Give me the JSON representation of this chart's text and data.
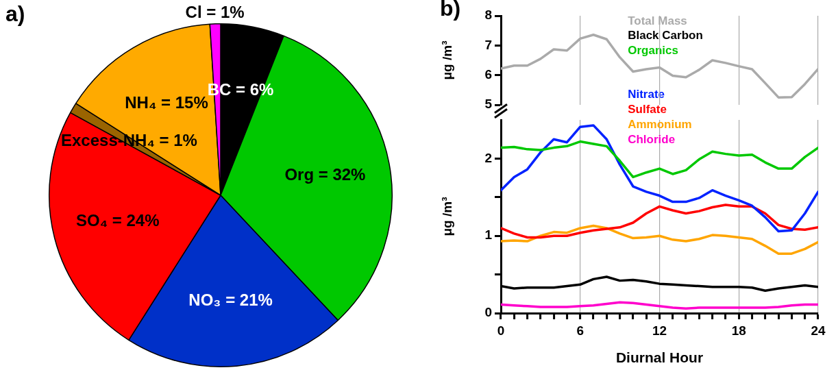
{
  "chart_data": [
    {
      "type": "pie",
      "title": "a)",
      "categories": [
        "BC = 6%",
        "Org = 32%",
        "NO₃ = 21%",
        "SO₄ = 24%",
        "Excess-NH₄ = 1%",
        "NH₄ = 15%",
        "Cl = 1%"
      ],
      "values": [
        6,
        32,
        21,
        24,
        1,
        15,
        1
      ],
      "colors": [
        "#000000",
        "#00c800",
        "#0030c8",
        "#ff0000",
        "#9a6400",
        "#ffaa00",
        "#ff00ff"
      ]
    },
    {
      "type": "line",
      "title": "b)",
      "ylabel": "μg /m³",
      "x": [
        0,
        1,
        2,
        3,
        4,
        5,
        6,
        7,
        8,
        9,
        10,
        11,
        12,
        13,
        14,
        15,
        16,
        17,
        18,
        19,
        20,
        21,
        22,
        23,
        24
      ],
      "xlim": [
        0,
        24
      ],
      "xticks": [
        0,
        6,
        12,
        18,
        24
      ],
      "ylim": [
        5,
        8
      ],
      "yticks": [
        5,
        6,
        7,
        8
      ],
      "grid": "x",
      "legend": "top",
      "tick_labels": "y",
      "series": [
        {
          "name": "Total Mass",
          "color": "#aaaaaa",
          "values": [
            6.22,
            6.32,
            6.32,
            6.55,
            6.87,
            6.83,
            7.23,
            7.36,
            7.21,
            6.6,
            6.12,
            6.2,
            6.26,
            5.98,
            5.93,
            6.18,
            6.5,
            6.41,
            6.3,
            6.2,
            5.73,
            5.25,
            5.26,
            5.7,
            6.21
          ]
        }
      ]
    },
    {
      "type": "line",
      "xlabel": "Diurnal Hour",
      "ylabel": "μg /m³",
      "x": [
        0,
        1,
        2,
        3,
        4,
        5,
        6,
        7,
        8,
        9,
        10,
        11,
        12,
        13,
        14,
        15,
        16,
        17,
        18,
        19,
        20,
        21,
        22,
        23,
        24
      ],
      "xlim": [
        0,
        24
      ],
      "xticks": [
        0,
        {
          "value": 1,
          "label": null
        },
        {
          "value": 2,
          "label": null
        },
        {
          "value": 3,
          "label": null
        },
        {
          "value": 4,
          "label": null
        },
        {
          "value": 5,
          "label": null
        },
        6,
        {
          "value": 7,
          "label": null
        },
        {
          "value": 8,
          "label": null
        },
        {
          "value": 9,
          "label": null
        },
        {
          "value": 10,
          "label": null
        },
        {
          "value": 11,
          "label": null
        },
        12,
        {
          "value": 13,
          "label": null
        },
        {
          "value": 14,
          "label": null
        },
        {
          "value": 15,
          "label": null
        },
        {
          "value": 16,
          "label": null
        },
        {
          "value": 17,
          "label": null
        },
        18,
        {
          "value": 19,
          "label": null
        },
        {
          "value": 20,
          "label": null
        },
        {
          "value": 21,
          "label": null
        },
        {
          "value": 22,
          "label": null
        },
        {
          "value": 23,
          "label": null
        },
        24
      ],
      "ylim": [
        0,
        2.5
      ],
      "yticks": [
        0,
        {
          "value": 0.5,
          "label": null
        },
        1,
        {
          "value": 1.5,
          "label": null
        },
        2
      ],
      "grid": "x",
      "legend": "top",
      "series": [
        {
          "name": "Black Carbon",
          "color": "#000000",
          "values": [
            0.35,
            0.32,
            0.33,
            0.33,
            0.33,
            0.35,
            0.37,
            0.44,
            0.47,
            0.42,
            0.43,
            0.41,
            0.38,
            0.37,
            0.36,
            0.35,
            0.34,
            0.34,
            0.34,
            0.33,
            0.29,
            0.32,
            0.34,
            0.36,
            0.34
          ]
        },
        {
          "name": "Organics",
          "color": "#00c800",
          "values": [
            2.14,
            2.15,
            2.12,
            2.11,
            2.14,
            2.16,
            2.22,
            2.19,
            2.16,
            1.97,
            1.76,
            1.82,
            1.87,
            1.8,
            1.85,
            1.99,
            2.09,
            2.06,
            2.04,
            2.05,
            1.95,
            1.87,
            1.87,
            2.02,
            2.14
          ]
        },
        {
          "name": "Nitrate",
          "color": "#0022ff",
          "values": [
            1.59,
            1.76,
            1.86,
            2.08,
            2.25,
            2.21,
            2.41,
            2.43,
            2.25,
            1.92,
            1.64,
            1.57,
            1.52,
            1.44,
            1.44,
            1.49,
            1.59,
            1.52,
            1.46,
            1.39,
            1.24,
            1.06,
            1.07,
            1.29,
            1.57
          ]
        },
        {
          "name": "Sulfate",
          "color": "#ff0000",
          "values": [
            1.1,
            1.03,
            0.98,
            0.98,
            1.0,
            1.0,
            1.04,
            1.07,
            1.09,
            1.11,
            1.17,
            1.29,
            1.38,
            1.33,
            1.29,
            1.32,
            1.37,
            1.4,
            1.38,
            1.38,
            1.29,
            1.14,
            1.09,
            1.08,
            1.11
          ]
        },
        {
          "name": "Ammonium",
          "color": "#ffa500",
          "values": [
            0.93,
            0.94,
            0.93,
            1.0,
            1.05,
            1.04,
            1.1,
            1.13,
            1.1,
            1.03,
            0.97,
            0.98,
            1.0,
            0.95,
            0.93,
            0.96,
            1.01,
            1.0,
            0.98,
            0.96,
            0.87,
            0.77,
            0.77,
            0.83,
            0.92
          ]
        },
        {
          "name": "Chloride",
          "color": "#ff00cc",
          "values": [
            0.11,
            0.1,
            0.09,
            0.08,
            0.08,
            0.08,
            0.09,
            0.1,
            0.12,
            0.14,
            0.13,
            0.11,
            0.09,
            0.07,
            0.06,
            0.07,
            0.07,
            0.07,
            0.07,
            0.07,
            0.07,
            0.08,
            0.1,
            0.11,
            0.11
          ]
        }
      ]
    }
  ]
}
